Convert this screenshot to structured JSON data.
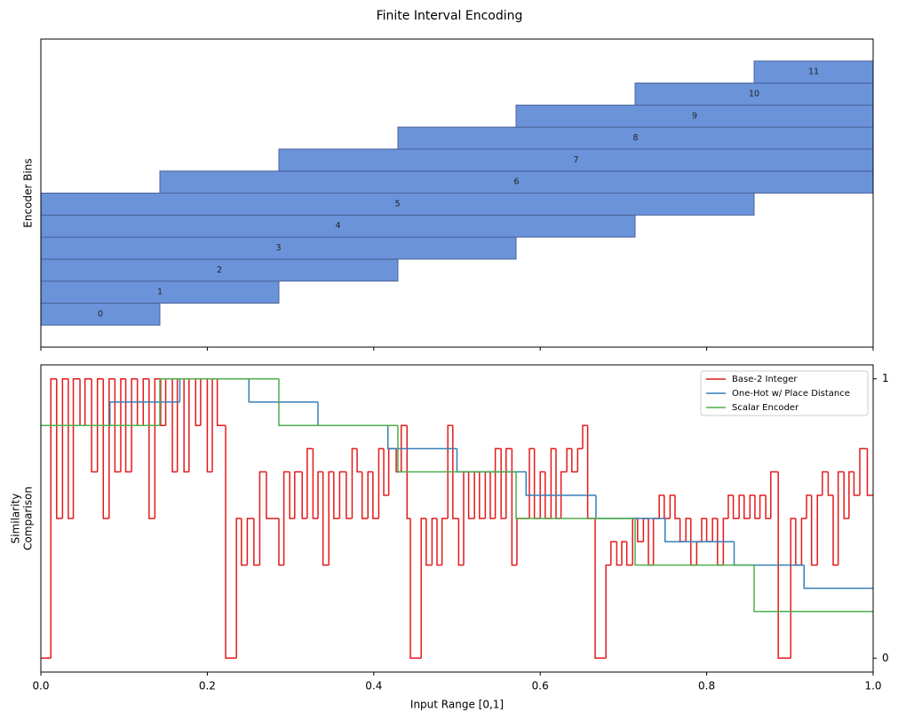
{
  "title": "Finite Interval Encoding",
  "chart_data": [
    {
      "type": "range-bar",
      "ylabel": "Encoder Bins",
      "categories": [
        "0",
        "1",
        "2",
        "3",
        "4",
        "5",
        "6",
        "7",
        "8",
        "9",
        "10",
        "11"
      ],
      "starts": [
        0,
        0,
        0,
        0,
        0,
        0,
        0.143,
        0.286,
        0.429,
        0.571,
        0.714,
        0.857
      ],
      "ends": [
        0.143,
        0.286,
        0.429,
        0.571,
        0.714,
        0.857,
        1,
        1,
        1,
        1,
        1,
        1
      ],
      "color": "#6b93d9",
      "edgecolor": "#4a6499",
      "xlim": [
        0,
        1
      ],
      "xticks": [
        0,
        0.2,
        0.4,
        0.6,
        0.8,
        1
      ],
      "ylim": [
        -1.5,
        12.5
      ]
    },
    {
      "type": "step",
      "xlabel": "Input Range [0,1]",
      "ylabel": [
        "Similarity",
        "Comparison"
      ],
      "xlim": [
        0,
        1
      ],
      "xticks": [
        {
          "value": 0,
          "label": "0.0"
        },
        0.2,
        0.4,
        0.6,
        0.8,
        {
          "value": 1,
          "label": "1.0"
        }
      ],
      "ylim": [
        -0.05,
        1.05
      ],
      "yticks": [
        0,
        1
      ],
      "yaxis_side": "right",
      "legend": "upper right",
      "series": [
        {
          "name": "Base-2 Integer",
          "color": "#e41a1c",
          "x": [
            0,
            0.012,
            0.019,
            0.026,
            0.033,
            0.039,
            0.047,
            0.053,
            0.061,
            0.068,
            0.075,
            0.082,
            0.089,
            0.096,
            0.102,
            0.109,
            0.116,
            0.123,
            0.13,
            0.137,
            0.144,
            0.15,
            0.158,
            0.164,
            0.172,
            0.178,
            0.186,
            0.192,
            0.2,
            0.206,
            0.212,
            0.222,
            0.235,
            0.241,
            0.248,
            0.256,
            0.263,
            0.271,
            0.286,
            0.292,
            0.299,
            0.305,
            0.314,
            0.32,
            0.327,
            0.333,
            0.339,
            0.346,
            0.352,
            0.359,
            0.367,
            0.374,
            0.38,
            0.386,
            0.393,
            0.399,
            0.406,
            0.412,
            0.418,
            0.427,
            0.433,
            0.44,
            0.444,
            0.457,
            0.463,
            0.47,
            0.476,
            0.482,
            0.489,
            0.495,
            0.502,
            0.508,
            0.514,
            0.521,
            0.527,
            0.534,
            0.54,
            0.546,
            0.553,
            0.559,
            0.566,
            0.572,
            0.587,
            0.593,
            0.6,
            0.606,
            0.613,
            0.619,
            0.625,
            0.632,
            0.638,
            0.645,
            0.651,
            0.657,
            0.666,
            0.679,
            0.685,
            0.692,
            0.698,
            0.704,
            0.711,
            0.717,
            0.724,
            0.73,
            0.736,
            0.743,
            0.749,
            0.756,
            0.762,
            0.768,
            0.775,
            0.781,
            0.788,
            0.794,
            0.8,
            0.807,
            0.813,
            0.82,
            0.826,
            0.832,
            0.839,
            0.845,
            0.852,
            0.858,
            0.864,
            0.871,
            0.877,
            0.886,
            0.901,
            0.907,
            0.914,
            0.92,
            0.926,
            0.933,
            0.939,
            0.946,
            0.952,
            0.958,
            0.965,
            0.971,
            0.977,
            0.984,
            0.993
          ],
          "values": [
            0,
            1,
            0.5,
            1,
            0.5,
            1,
            0.833,
            1,
            0.667,
            1,
            0.5,
            1,
            0.667,
            1,
            0.667,
            1,
            0.833,
            1,
            0.5,
            1,
            0.833,
            1,
            0.667,
            1,
            0.667,
            1,
            0.833,
            1,
            0.667,
            1,
            0.833,
            0,
            0.5,
            0.333,
            0.5,
            0.333,
            0.667,
            0.5,
            0.333,
            0.667,
            0.5,
            0.667,
            0.5,
            0.75,
            0.5,
            0.667,
            0.333,
            0.667,
            0.5,
            0.667,
            0.5,
            0.75,
            0.667,
            0.5,
            0.667,
            0.5,
            0.75,
            0.583,
            0.75,
            0.667,
            0.833,
            0.5,
            0,
            0.5,
            0.333,
            0.5,
            0.333,
            0.5,
            0.833,
            0.5,
            0.333,
            0.667,
            0.5,
            0.667,
            0.5,
            0.667,
            0.5,
            0.75,
            0.5,
            0.75,
            0.333,
            0.5,
            0.75,
            0.5,
            0.667,
            0.5,
            0.75,
            0.5,
            0.667,
            0.75,
            0.667,
            0.75,
            0.833,
            0.5,
            0,
            0.333,
            0.417,
            0.333,
            0.417,
            0.333,
            0.5,
            0.417,
            0.5,
            0.333,
            0.5,
            0.583,
            0.5,
            0.583,
            0.5,
            0.417,
            0.5,
            0.333,
            0.417,
            0.5,
            0.417,
            0.5,
            0.333,
            0.5,
            0.583,
            0.5,
            0.583,
            0.5,
            0.583,
            0.5,
            0.583,
            0.5,
            0.667,
            0,
            0.5,
            0.333,
            0.5,
            0.583,
            0.333,
            0.583,
            0.667,
            0.583,
            0.333,
            0.667,
            0.5,
            0.667,
            0.583,
            0.75,
            0.583
          ]
        },
        {
          "name": "One-Hot w/ Place Distance",
          "color": "#377eb8",
          "x": [
            0,
            0.083,
            0.167,
            0.25,
            0.333,
            0.417,
            0.5,
            0.583,
            0.667,
            0.75,
            0.833,
            0.917
          ],
          "values": [
            0.833,
            0.917,
            1,
            0.917,
            0.833,
            0.75,
            0.667,
            0.583,
            0.5,
            0.417,
            0.333,
            0.25
          ]
        },
        {
          "name": "Scalar Encoder",
          "color": "#4daf4a",
          "x": [
            0,
            0.143,
            0.286,
            0.429,
            0.571,
            0.714,
            0.857
          ],
          "values": [
            0.833,
            1,
            0.833,
            0.667,
            0.5,
            0.333,
            0.167
          ]
        }
      ]
    }
  ]
}
